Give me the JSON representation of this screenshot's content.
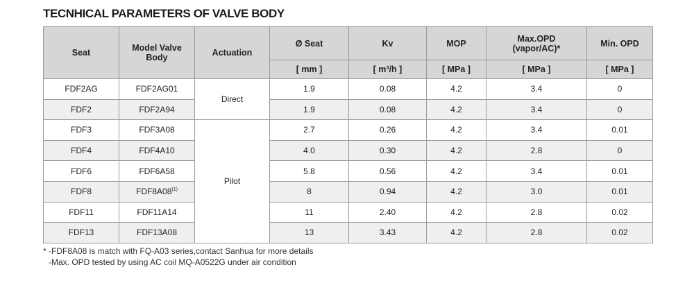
{
  "title": "TECNHICAL PARAMETERS OF VALVE BODY",
  "table": {
    "columns": [
      "Seat",
      "Model Valve\nBody",
      "Actuation",
      "Ø Seat",
      "Kv",
      "MOP",
      "Max.OPD\n(vapor/AC)*",
      "Min. OPD"
    ],
    "units": [
      "[ mm ]",
      "[ m³/h ]",
      "[ MPa ]",
      "[ MPa ]",
      "[ MPa ]"
    ],
    "rows": [
      {
        "seat": "FDF2AG",
        "model": "FDF2AG01",
        "actuation": "Direct",
        "values": [
          "1.9",
          "0.08",
          "4.2",
          "3.4",
          "0"
        ]
      },
      {
        "seat": "FDF2",
        "model": "FDF2A94",
        "values": [
          "1.9",
          "0.08",
          "4.2",
          "3.4",
          "0"
        ]
      },
      {
        "seat": "FDF3",
        "model": "FDF3A08",
        "actuation": "Pilot",
        "values": [
          "2.7",
          "0.26",
          "4.2",
          "3.4",
          "0.01"
        ]
      },
      {
        "seat": "FDF4",
        "model": "FDF4A10",
        "values": [
          "4.0",
          "0.30",
          "4.2",
          "2.8",
          "0"
        ]
      },
      {
        "seat": "FDF6",
        "model": "FDF6A58",
        "values": [
          "5.8",
          "0.56",
          "4.2",
          "3.4",
          "0.01"
        ]
      },
      {
        "seat": "FDF8",
        "model": "FDF8A08",
        "note": "(1)",
        "values": [
          "8",
          "0.94",
          "4.2",
          "3.0",
          "0.01"
        ]
      },
      {
        "seat": "FDF11",
        "model": "FDF11A14",
        "values": [
          "11",
          "2.40",
          "4.2",
          "2.8",
          "0.02"
        ]
      },
      {
        "seat": "FDF13",
        "model": "FDF13A08",
        "values": [
          "13",
          "3.43",
          "4.2",
          "2.8",
          "0.02"
        ]
      }
    ]
  },
  "footnotes": [
    "* -FDF8A08 is match with FQ-A03 series,contact Sanhua for more details",
    "-Max. OPD tested by using AC coil MQ-A0522G under air condition"
  ]
}
